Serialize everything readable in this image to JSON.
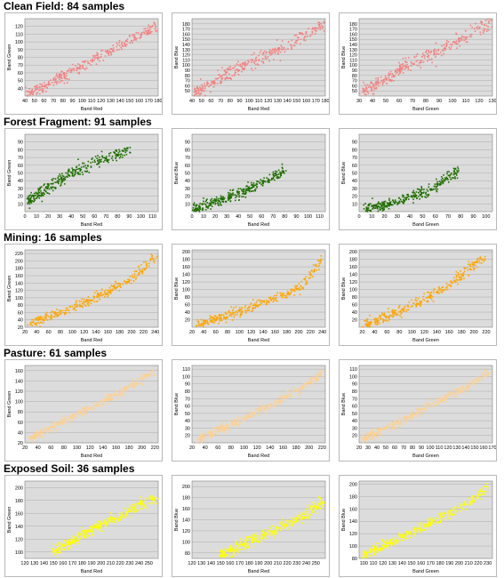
{
  "colors": {
    "clean_field": "#f28080",
    "forest_fragment": "#1f6e00",
    "mining": "#ffa500",
    "pasture": "#ffd08c",
    "exposed_soil": "#ffff00",
    "plot_background": "#dcdcdc",
    "gridline": "#a0a0a0"
  },
  "chart_data": [
    {
      "group": "Clean Field",
      "section_title": "Clean Field: 84 samples",
      "type": "scatter",
      "xlabel": "Band Red",
      "ylabel": "Band Green",
      "xlim": [
        40,
        180
      ],
      "ylim": [
        30,
        130
      ],
      "xticks": [
        40,
        50,
        60,
        70,
        80,
        90,
        100,
        110,
        120,
        130,
        140,
        150,
        160,
        170,
        180
      ],
      "yticks": [
        40,
        50,
        60,
        70,
        80,
        90,
        100,
        110,
        120
      ],
      "trend": [
        [
          42,
          32
        ],
        [
          80,
          56
        ],
        [
          120,
          82
        ],
        [
          160,
          108
        ],
        [
          180,
          122
        ]
      ],
      "spread": 0.08
    },
    {
      "group": "Clean Field",
      "type": "scatter",
      "xlabel": "Band Red",
      "ylabel": "Band Blue",
      "xlim": [
        40,
        180
      ],
      "ylim": [
        40,
        190
      ],
      "xticks": [
        40,
        50,
        60,
        70,
        80,
        90,
        100,
        110,
        120,
        130,
        140,
        150,
        160,
        170,
        180
      ],
      "yticks": [
        50,
        60,
        70,
        80,
        90,
        100,
        110,
        120,
        130,
        140,
        150,
        160,
        170,
        180
      ],
      "trend": [
        [
          42,
          45
        ],
        [
          80,
          85
        ],
        [
          120,
          120
        ],
        [
          160,
          160
        ],
        [
          180,
          182
        ]
      ],
      "spread": 0.1
    },
    {
      "group": "Clean Field",
      "type": "scatter",
      "xlabel": "Band Green",
      "ylabel": "Band Blue",
      "xlim": [
        30,
        130
      ],
      "ylim": [
        40,
        190
      ],
      "xticks": [
        30,
        40,
        50,
        60,
        70,
        80,
        90,
        100,
        110,
        120,
        130
      ],
      "yticks": [
        50,
        60,
        70,
        80,
        90,
        100,
        110,
        120,
        130,
        140,
        150,
        160,
        170,
        180
      ],
      "trend": [
        [
          32,
          45
        ],
        [
          60,
          90
        ],
        [
          90,
          130
        ],
        [
          120,
          170
        ],
        [
          130,
          182
        ]
      ],
      "spread": 0.1
    },
    {
      "group": "Forest Fragment",
      "section_title": "Forest Fragment: 91 samples",
      "type": "scatter",
      "xlabel": "Band Red",
      "ylabel": "Band Green",
      "xlim": [
        0,
        115
      ],
      "ylim": [
        0,
        100
      ],
      "xticks": [
        0,
        10,
        20,
        30,
        40,
        50,
        60,
        70,
        80,
        90,
        100,
        110
      ],
      "yticks": [
        10,
        20,
        30,
        40,
        50,
        60,
        70,
        80,
        90
      ],
      "trend": [
        [
          2,
          12
        ],
        [
          20,
          32
        ],
        [
          40,
          50
        ],
        [
          60,
          62
        ],
        [
          90,
          80
        ]
      ],
      "spread": 0.09
    },
    {
      "group": "Forest Fragment",
      "type": "scatter",
      "xlabel": "Band Red",
      "ylabel": "Band Blue",
      "xlim": [
        0,
        115
      ],
      "ylim": [
        0,
        100
      ],
      "xticks": [
        0,
        10,
        20,
        30,
        40,
        50,
        60,
        70,
        80,
        90,
        100,
        110
      ],
      "yticks": [
        10,
        20,
        30,
        40,
        50,
        60,
        70,
        80,
        90
      ],
      "trend": [
        [
          2,
          2
        ],
        [
          20,
          12
        ],
        [
          40,
          24
        ],
        [
          60,
          36
        ],
        [
          80,
          52
        ]
      ],
      "spread": 0.08
    },
    {
      "group": "Forest Fragment",
      "type": "scatter",
      "xlabel": "Band Green",
      "ylabel": "Band Blue",
      "xlim": [
        0,
        105
      ],
      "ylim": [
        0,
        100
      ],
      "xticks": [
        0,
        10,
        20,
        30,
        40,
        50,
        60,
        70,
        80,
        90,
        100
      ],
      "yticks": [
        10,
        20,
        30,
        40,
        50,
        60,
        70,
        80,
        90
      ],
      "trend": [
        [
          5,
          2
        ],
        [
          20,
          8
        ],
        [
          40,
          18
        ],
        [
          60,
          32
        ],
        [
          80,
          55
        ]
      ],
      "spread": 0.08
    },
    {
      "group": "Mining",
      "section_title": "Mining: 16 samples",
      "type": "scatter",
      "xlabel": "Band Red",
      "ylabel": "Band Green",
      "xlim": [
        20,
        245
      ],
      "ylim": [
        20,
        230
      ],
      "xticks": [
        20,
        40,
        60,
        80,
        100,
        120,
        140,
        160,
        180,
        200,
        220,
        240
      ],
      "yticks": [
        20,
        40,
        60,
        80,
        100,
        120,
        140,
        160,
        180,
        200,
        220
      ],
      "trend": [
        [
          30,
          30
        ],
        [
          80,
          60
        ],
        [
          140,
          100
        ],
        [
          200,
          150
        ],
        [
          240,
          210
        ]
      ],
      "spread": 0.07
    },
    {
      "group": "Mining",
      "type": "scatter",
      "xlabel": "Band Red",
      "ylabel": "Band Blue",
      "xlim": [
        20,
        245
      ],
      "ylim": [
        0,
        205
      ],
      "xticks": [
        20,
        40,
        60,
        80,
        100,
        120,
        140,
        160,
        180,
        200,
        220,
        240
      ],
      "yticks": [
        20,
        40,
        60,
        80,
        100,
        120,
        140,
        160,
        180,
        200
      ],
      "trend": [
        [
          30,
          5
        ],
        [
          80,
          30
        ],
        [
          140,
          65
        ],
        [
          200,
          100
        ],
        [
          240,
          180
        ]
      ],
      "spread": 0.07
    },
    {
      "group": "Mining",
      "type": "scatter",
      "xlabel": "Band Green",
      "ylabel": "Band Blue",
      "xlim": [
        15,
        230
      ],
      "ylim": [
        0,
        205
      ],
      "xticks": [
        20,
        40,
        60,
        80,
        100,
        120,
        140,
        160,
        180,
        200,
        220
      ],
      "yticks": [
        20,
        40,
        60,
        80,
        100,
        120,
        140,
        160,
        180,
        200
      ],
      "trend": [
        [
          25,
          5
        ],
        [
          60,
          30
        ],
        [
          100,
          55
        ],
        [
          150,
          100
        ],
        [
          220,
          190
        ]
      ],
      "spread": 0.07
    },
    {
      "group": "Pasture",
      "section_title": "Pasture: 61 samples",
      "type": "scatter",
      "xlabel": "Band Red",
      "ylabel": "Band Green",
      "xlim": [
        20,
        225
      ],
      "ylim": [
        20,
        170
      ],
      "xticks": [
        20,
        40,
        60,
        80,
        100,
        120,
        140,
        160,
        180,
        200,
        220
      ],
      "yticks": [
        20,
        40,
        60,
        80,
        100,
        120,
        140,
        160
      ],
      "trend": [
        [
          30,
          28
        ],
        [
          80,
          62
        ],
        [
          140,
          100
        ],
        [
          190,
          135
        ],
        [
          220,
          160
        ]
      ],
      "spread": 0.06
    },
    {
      "group": "Pasture",
      "type": "scatter",
      "xlabel": "Band Red",
      "ylabel": "Band Blue",
      "xlim": [
        20,
        225
      ],
      "ylim": [
        10,
        115
      ],
      "xticks": [
        20,
        40,
        60,
        80,
        100,
        120,
        140,
        160,
        180,
        200,
        220
      ],
      "yticks": [
        20,
        30,
        40,
        50,
        60,
        70,
        80,
        90,
        100,
        110
      ],
      "trend": [
        [
          30,
          15
        ],
        [
          80,
          35
        ],
        [
          140,
          60
        ],
        [
          190,
          85
        ],
        [
          220,
          105
        ]
      ],
      "spread": 0.06
    },
    {
      "group": "Pasture",
      "type": "scatter",
      "xlabel": "Band Green",
      "ylabel": "Band Blue",
      "xlim": [
        20,
        170
      ],
      "ylim": [
        10,
        115
      ],
      "xticks": [
        20,
        30,
        40,
        50,
        60,
        70,
        80,
        90,
        100,
        110,
        120,
        130,
        140,
        150,
        160,
        170
      ],
      "yticks": [
        20,
        30,
        40,
        50,
        60,
        70,
        80,
        90,
        100,
        110
      ],
      "trend": [
        [
          25,
          15
        ],
        [
          60,
          35
        ],
        [
          100,
          60
        ],
        [
          140,
          85
        ],
        [
          165,
          105
        ]
      ],
      "spread": 0.06
    },
    {
      "group": "Exposed Soil",
      "section_title": "Exposed Soil: 36 samples",
      "type": "scatter",
      "xlabel": "Band Red",
      "ylabel": "Band Green",
      "xlim": [
        120,
        260
      ],
      "ylim": [
        90,
        210
      ],
      "xticks": [
        120,
        130,
        140,
        150,
        160,
        170,
        180,
        190,
        200,
        210,
        220,
        230,
        240,
        250
      ],
      "yticks": [
        100,
        120,
        140,
        160,
        180,
        200
      ],
      "trend": [
        [
          150,
          100
        ],
        [
          180,
          125
        ],
        [
          210,
          150
        ],
        [
          240,
          170
        ],
        [
          258,
          185
        ]
      ],
      "spread": 0.08
    },
    {
      "group": "Exposed Soil",
      "type": "scatter",
      "xlabel": "Band Red",
      "ylabel": "Band Blue",
      "xlim": [
        120,
        260
      ],
      "ylim": [
        70,
        210
      ],
      "xticks": [
        120,
        130,
        140,
        150,
        160,
        170,
        180,
        190,
        200,
        210,
        220,
        230,
        240,
        250
      ],
      "yticks": [
        80,
        100,
        120,
        140,
        160,
        180,
        200
      ],
      "trend": [
        [
          150,
          75
        ],
        [
          180,
          100
        ],
        [
          210,
          125
        ],
        [
          240,
          150
        ],
        [
          258,
          175
        ]
      ],
      "spread": 0.08
    },
    {
      "group": "Exposed Soil",
      "type": "scatter",
      "xlabel": "Band Green",
      "ylabel": "Band Blue",
      "xlim": [
        95,
        235
      ],
      "ylim": [
        80,
        205
      ],
      "xticks": [
        100,
        110,
        120,
        130,
        140,
        150,
        160,
        170,
        180,
        190,
        200,
        210,
        220,
        230
      ],
      "yticks": [
        80,
        100,
        120,
        140,
        160,
        180,
        200
      ],
      "trend": [
        [
          100,
          85
        ],
        [
          140,
          115
        ],
        [
          180,
          145
        ],
        [
          210,
          170
        ],
        [
          230,
          195
        ]
      ],
      "spread": 0.07
    }
  ]
}
